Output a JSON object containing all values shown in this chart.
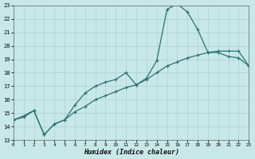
{
  "xlabel": "Humidex (Indice chaleur)",
  "bg_color": "#c8e8e8",
  "grid_color": "#afd4d4",
  "line_color": "#2a7070",
  "xlim": [
    0,
    23
  ],
  "ylim": [
    13,
    23
  ],
  "xticks": [
    0,
    1,
    2,
    3,
    4,
    5,
    6,
    7,
    8,
    9,
    10,
    11,
    12,
    13,
    14,
    15,
    16,
    17,
    18,
    19,
    20,
    21,
    22,
    23
  ],
  "yticks": [
    13,
    14,
    15,
    16,
    17,
    18,
    19,
    20,
    21,
    22,
    23
  ],
  "curve1_x": [
    0,
    1,
    2,
    3,
    4,
    5,
    6,
    7,
    8,
    9,
    10,
    11,
    12,
    13,
    14,
    15,
    16,
    17,
    18,
    19,
    20,
    21,
    22,
    23
  ],
  "curve1_y": [
    14.5,
    14.7,
    15.2,
    13.4,
    14.2,
    14.5,
    15.6,
    16.5,
    17.0,
    17.3,
    17.5,
    18.0,
    17.1,
    17.6,
    18.9,
    22.7,
    23.1,
    22.5,
    21.2,
    19.5,
    19.5,
    19.2,
    19.1,
    18.5
  ],
  "curve2_x": [
    0,
    1,
    2,
    3,
    4,
    5,
    6,
    7,
    8,
    9,
    10,
    11,
    12,
    13,
    14,
    15,
    16,
    17,
    18,
    19,
    20,
    21,
    22,
    23
  ],
  "curve2_y": [
    14.5,
    14.8,
    15.2,
    13.4,
    14.2,
    14.5,
    15.1,
    15.5,
    16.0,
    16.3,
    16.6,
    16.9,
    17.1,
    17.5,
    18.0,
    18.5,
    18.8,
    19.1,
    19.3,
    19.5,
    19.6,
    19.6,
    19.6,
    18.5
  ]
}
